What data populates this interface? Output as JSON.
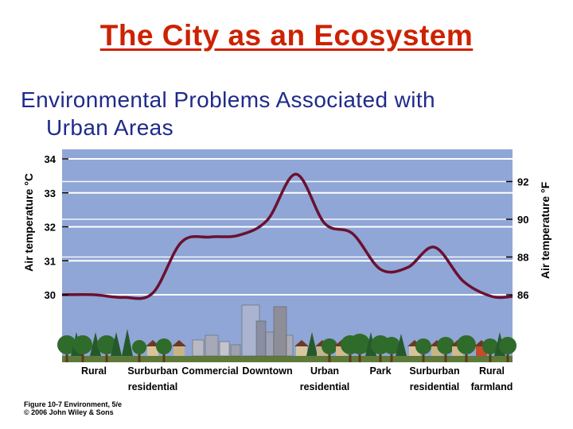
{
  "slide": {
    "title": "The City as an Ecosystem",
    "subtitle_line1": "Environmental Problems Associated with",
    "subtitle_line2": "Urban Areas"
  },
  "figure_caption": {
    "line1": "Figure 10-7  Environment, 5/e",
    "line2": "© 2006 John Wiley & Sons"
  },
  "chart_data": {
    "type": "line",
    "title": "",
    "ylabel": "Air temperature °C",
    "y2label": "Air temperature °F",
    "ylim": [
      29.6,
      34.2
    ],
    "yticks": [
      30,
      31,
      32,
      33,
      34
    ],
    "y2ticks": [
      86,
      88,
      90,
      92
    ],
    "grid": true,
    "categories": [
      {
        "line1": "Rural",
        "line2": ""
      },
      {
        "line1": "Surburban",
        "line2": "residential"
      },
      {
        "line1": "Commercial",
        "line2": ""
      },
      {
        "line1": "Downtown",
        "line2": ""
      },
      {
        "line1": "Urban",
        "line2": "residential"
      },
      {
        "line1": "Park",
        "line2": ""
      },
      {
        "line1": "Surburban",
        "line2": "residential"
      },
      {
        "line1": "Rural",
        "line2": "farmland"
      }
    ],
    "series": [
      {
        "x": [
          0,
          0.5,
          1,
          1.5,
          2,
          2.5,
          3,
          3.5,
          4,
          4.5,
          5,
          5.5,
          6,
          6.5,
          7
        ],
        "values": [
          30.0,
          29.92,
          30.05,
          31.55,
          31.7,
          31.75,
          32.2,
          33.55,
          32.1,
          31.8,
          30.75,
          30.8,
          31.4,
          30.4,
          29.95
        ]
      }
    ],
    "colors": {
      "plot_bg": "#8fa6d6",
      "curve": "#6b1030",
      "grid": "#ffffff"
    }
  }
}
